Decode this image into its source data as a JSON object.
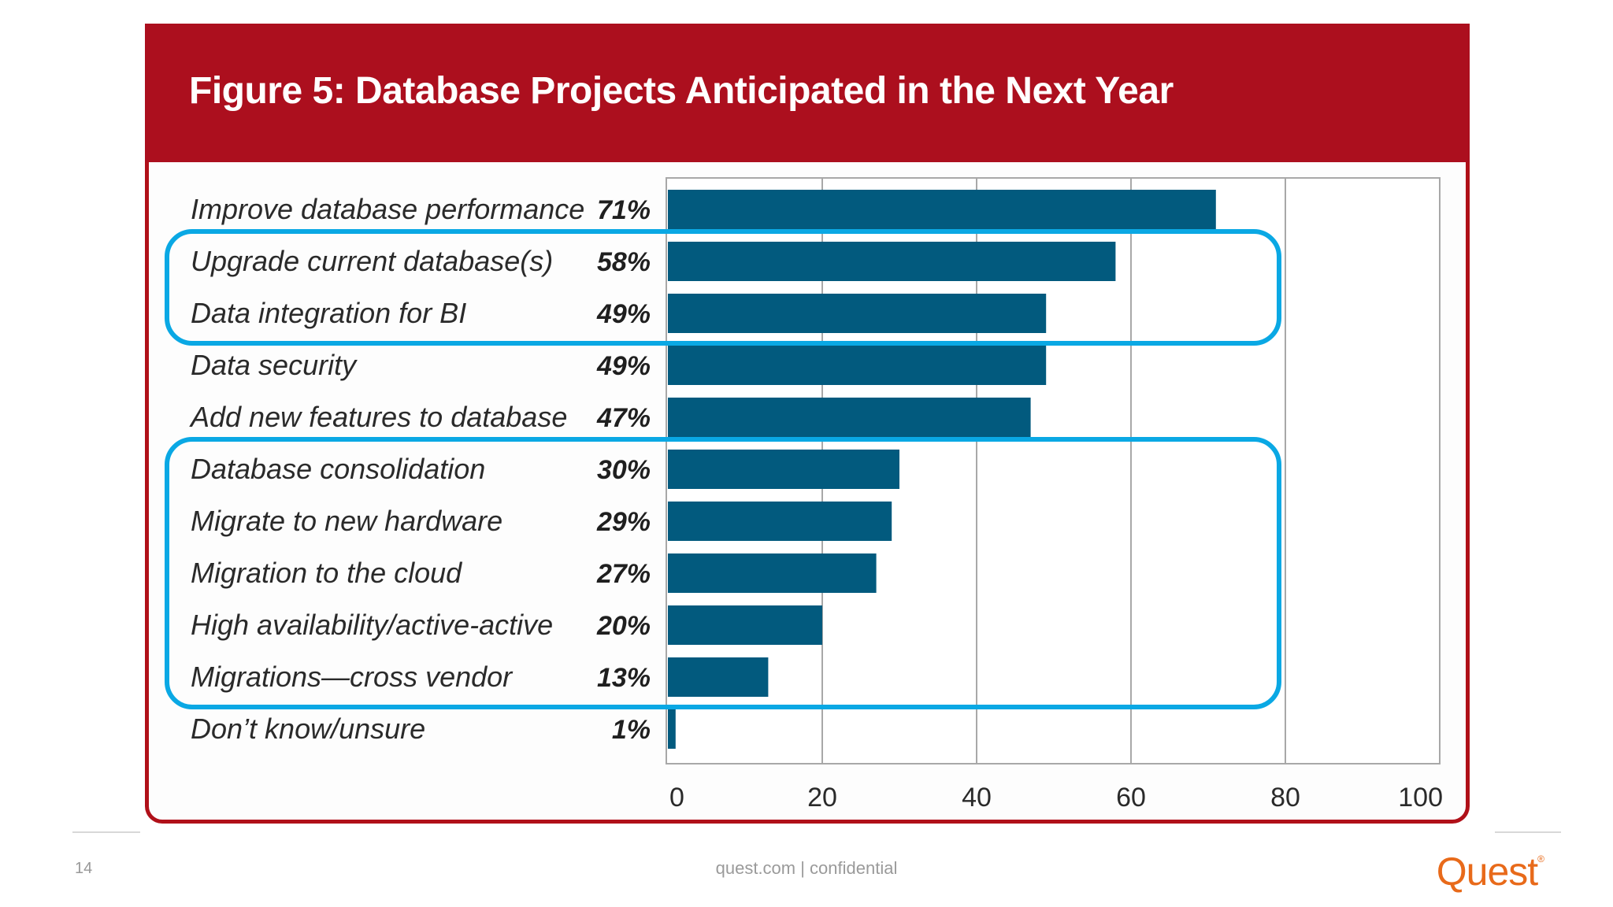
{
  "figure": {
    "title": "Figure 5: Database Projects Anticipated in the Next Year"
  },
  "chart_data": {
    "type": "bar",
    "orientation": "horizontal",
    "title": "Figure 5: Database Projects Anticipated in the Next Year",
    "categories": [
      "Improve database performance",
      "Upgrade current database(s)",
      "Data integration for BI",
      "Data security",
      "Add new features to database",
      "Database consolidation",
      "Migrate to new hardware",
      "Migration to the cloud",
      "High availability/active-active",
      "Migrations—cross vendor",
      "Don’t know/unsure"
    ],
    "values": [
      71,
      58,
      49,
      49,
      47,
      30,
      29,
      27,
      20,
      13,
      1
    ],
    "value_labels": [
      "71%",
      "58%",
      "49%",
      "49%",
      "47%",
      "30%",
      "29%",
      "27%",
      "20%",
      "13%",
      "1%"
    ],
    "xlim": [
      0,
      100
    ],
    "xticks": [
      0,
      20,
      40,
      60,
      80,
      100
    ],
    "xtick_labels": [
      "0",
      "20",
      "40",
      "60",
      "80",
      "100"
    ],
    "grid": true,
    "highlight_groups": [
      {
        "from_index": 1,
        "to_index": 2
      },
      {
        "from_index": 5,
        "to_index": 9
      }
    ]
  },
  "colors": {
    "bar": "#025a7e",
    "title_bar": "#ac0f1e",
    "highlight": "#0aa8e4",
    "grid": "#a8a8a8",
    "brand": "#e86a1a"
  },
  "footer": {
    "page_number": "14",
    "text": "quest.com | confidential",
    "brand": "Quest",
    "brand_mark": "®"
  }
}
